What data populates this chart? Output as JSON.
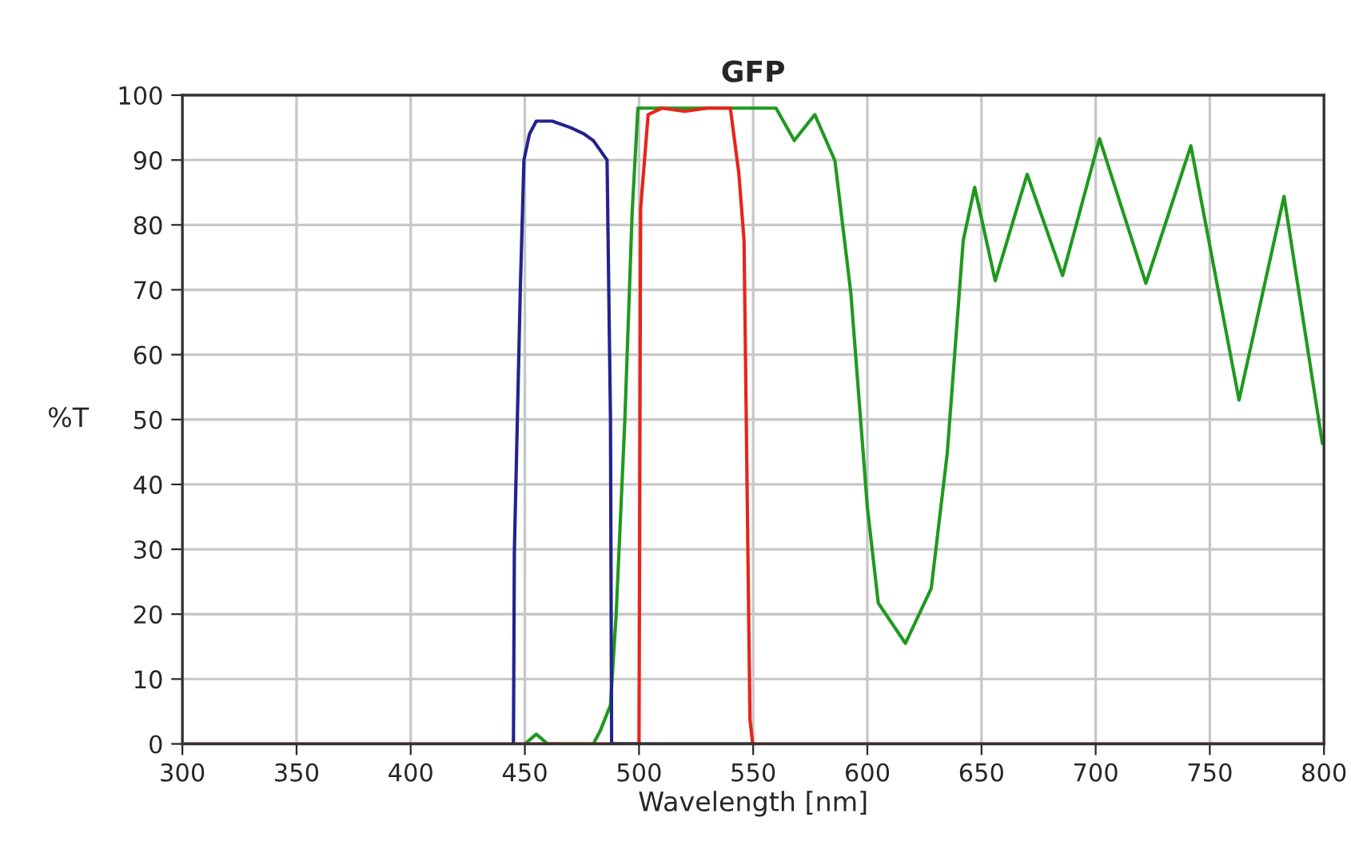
{
  "chart_data": {
    "type": "line",
    "title": "GFP",
    "xlabel": "Wavelength [nm]",
    "ylabel": "%T",
    "xlim": [
      300,
      800
    ],
    "xticks": [
      300,
      350,
      400,
      450,
      500,
      550,
      600,
      650,
      700,
      750,
      800
    ],
    "ylim": [
      0,
      100
    ],
    "yticks": [
      0,
      10,
      20,
      30,
      40,
      50,
      60,
      70,
      80,
      90,
      100
    ],
    "grid": true,
    "marker": "none",
    "line_style": "solid",
    "series": [
      {
        "color": "#1f9a1f",
        "x": [
          450,
          455,
          460,
          480,
          483,
          487.5,
          490,
          493.8,
          497,
          499.5,
          510,
          540,
          560,
          568,
          577,
          585.8,
          592.8,
          600,
          604.8,
          616.7,
          628,
          635,
          642,
          647,
          656,
          670,
          685.5,
          701.7,
          722,
          741.7,
          762.8,
          782.5,
          799.3
        ],
        "values": [
          0,
          1.5,
          0,
          0,
          2,
          6,
          20,
          50,
          82,
          98,
          98,
          98,
          98,
          93,
          97,
          89.9,
          69.4,
          36.5,
          21.7,
          15.5,
          24,
          44.8,
          77.6,
          85.8,
          71.4,
          87.8,
          72.2,
          93.3,
          71,
          92.2,
          53,
          84.4,
          46.3
        ]
      },
      {
        "color": "#e8241c",
        "x": [
          300,
          500,
          500.7,
          504,
          510,
          520,
          530,
          540,
          543.7,
          546,
          548.6,
          549.8,
          800
        ],
        "values": [
          0,
          0,
          82.5,
          97,
          98,
          97.5,
          98,
          98,
          88,
          77.6,
          3.7,
          0,
          0
        ]
      },
      {
        "color": "#23238f",
        "x": [
          445,
          445.4,
          448,
          449.6,
          452,
          455,
          462,
          470,
          476,
          480,
          486,
          487.5,
          488,
          550
        ],
        "values": [
          0,
          29.6,
          70,
          90,
          94,
          96,
          96,
          95,
          94,
          93,
          90,
          50,
          0,
          0
        ]
      }
    ]
  }
}
